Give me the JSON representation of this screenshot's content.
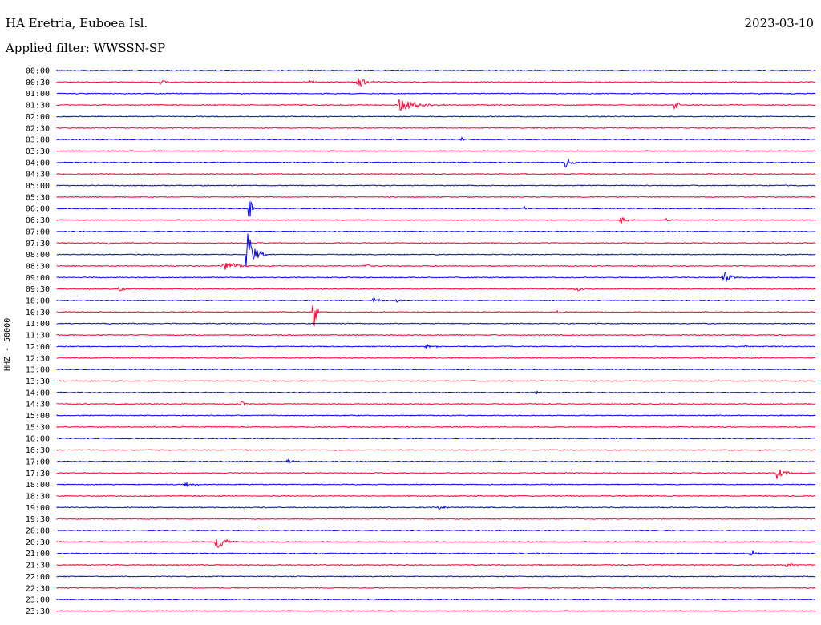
{
  "header": {
    "station": "HA Eretria, Euboea Isl.",
    "date": "2023-03-10",
    "filter": "Applied filter: WWSSN-SP"
  },
  "chart_data": {
    "type": "line",
    "ylabel": "HHZ - 50000",
    "colors": {
      "odd_row": "#0000ff",
      "even_row": "#ff0033"
    },
    "rows": [
      "00:00",
      "00:30",
      "01:00",
      "01:30",
      "02:00",
      "02:30",
      "03:00",
      "03:30",
      "04:00",
      "04:30",
      "05:00",
      "05:30",
      "06:00",
      "06:30",
      "07:00",
      "07:30",
      "08:00",
      "08:30",
      "09:00",
      "09:30",
      "10:00",
      "10:30",
      "11:00",
      "11:30",
      "12:00",
      "12:30",
      "13:00",
      "13:30",
      "14:00",
      "14:30",
      "15:00",
      "15:30",
      "16:00",
      "16:30",
      "17:00",
      "17:30",
      "18:00",
      "18:30",
      "19:00",
      "19:30",
      "20:00",
      "20:30",
      "21:00",
      "21:30",
      "22:00",
      "22:30",
      "23:00",
      "23:30"
    ],
    "row_minutes": 30,
    "events": [
      {
        "row": 1,
        "min": 5.3,
        "amp": 3,
        "dur": 1.0
      },
      {
        "row": 1,
        "min": 13.0,
        "amp": 3,
        "dur": 0.6
      },
      {
        "row": 1,
        "min": 15.5,
        "amp": 7,
        "dur": 1.2
      },
      {
        "row": 1,
        "min": 24.5,
        "amp": 2,
        "dur": 0.8
      },
      {
        "row": 3,
        "min": 17.6,
        "amp": 8,
        "dur": 2.5
      },
      {
        "row": 3,
        "min": 31.8,
        "amp": 10,
        "dur": 0.4
      },
      {
        "row": 6,
        "min": 20.8,
        "amp": 3,
        "dur": 0.4
      },
      {
        "row": 8,
        "min": 26.2,
        "amp": 14,
        "dur": 0.5
      },
      {
        "row": 12,
        "min": 9.9,
        "amp": 20,
        "dur": 0.3
      },
      {
        "row": 12,
        "min": 24.0,
        "amp": 3,
        "dur": 0.4
      },
      {
        "row": 13,
        "min": 29.0,
        "amp": 5,
        "dur": 0.7
      },
      {
        "row": 13,
        "min": 31.3,
        "amp": 3,
        "dur": 0.5
      },
      {
        "row": 15,
        "min": 2.6,
        "amp": 3,
        "dur": 0.5
      },
      {
        "row": 16,
        "min": 9.8,
        "amp": 30,
        "dur": 1.0
      },
      {
        "row": 17,
        "min": 8.6,
        "amp": 7,
        "dur": 1.5
      },
      {
        "row": 17,
        "min": 15.8,
        "amp": 3,
        "dur": 1.0
      },
      {
        "row": 18,
        "min": 34.3,
        "amp": 8,
        "dur": 1.0
      },
      {
        "row": 19,
        "min": 3.2,
        "amp": 5,
        "dur": 0.6
      },
      {
        "row": 19,
        "min": 26.7,
        "amp": 4,
        "dur": 0.5
      },
      {
        "row": 20,
        "min": 16.3,
        "amp": 4,
        "dur": 0.8
      },
      {
        "row": 20,
        "min": 17.5,
        "amp": 4,
        "dur": 0.5
      },
      {
        "row": 21,
        "min": 13.2,
        "amp": 35,
        "dur": 0.3
      },
      {
        "row": 21,
        "min": 25.8,
        "amp": 3,
        "dur": 0.4
      },
      {
        "row": 24,
        "min": 19.0,
        "amp": 4,
        "dur": 1.0
      },
      {
        "row": 24,
        "min": 35.4,
        "amp": 2,
        "dur": 0.5
      },
      {
        "row": 28,
        "min": 24.6,
        "amp": 3,
        "dur": 0.4
      },
      {
        "row": 29,
        "min": 9.4,
        "amp": 6,
        "dur": 0.6
      },
      {
        "row": 34,
        "min": 11.9,
        "amp": 4,
        "dur": 0.6
      },
      {
        "row": 35,
        "min": 37.0,
        "amp": 9,
        "dur": 1.0
      },
      {
        "row": 36,
        "min": 6.6,
        "amp": 4,
        "dur": 1.0
      },
      {
        "row": 38,
        "min": 19.6,
        "amp": 3,
        "dur": 0.8
      },
      {
        "row": 41,
        "min": 8.2,
        "amp": 11,
        "dur": 1.2
      },
      {
        "row": 42,
        "min": 35.7,
        "amp": 4,
        "dur": 1.0
      },
      {
        "row": 43,
        "min": 37.5,
        "amp": 3,
        "dur": 1.0
      }
    ]
  }
}
